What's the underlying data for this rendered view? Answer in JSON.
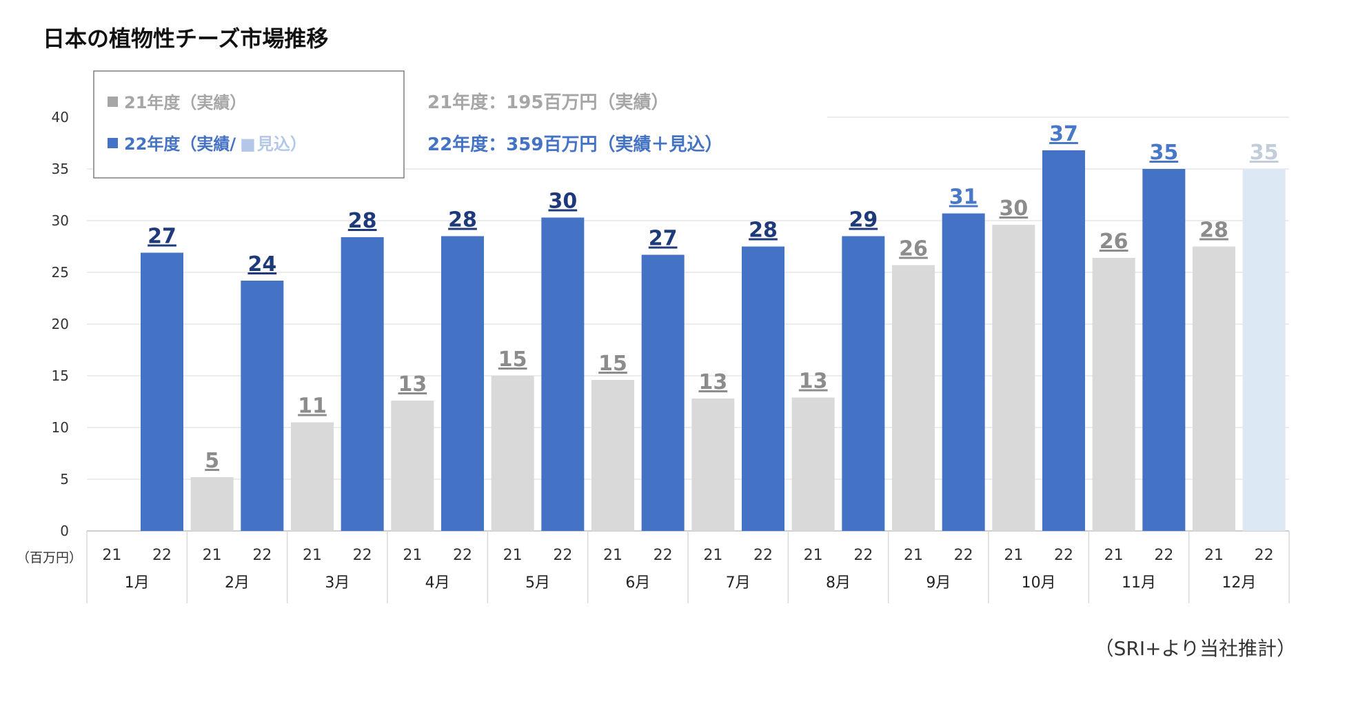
{
  "title": "日本の植物性チーズ市場推移",
  "unit_label": "（百万円）",
  "source_note": "（SRI+より当社推計）",
  "legend": {
    "fy21": "21年度（実績）",
    "fy22_actual": "22年度（実績/",
    "fy22_forecast": "見込）"
  },
  "totals": {
    "fy21": "21年度：195百万円（実績）",
    "fy22": "22年度：359百万円（実績＋見込）"
  },
  "colors": {
    "fy21_bar": "#d9d9d9",
    "fy21_label": "#8c8c8c",
    "fy22_bar": "#4472c4",
    "fy22_label": "#1f3a7a",
    "forecast_bar": "#dde8f5",
    "forecast_label": "#c2cdd9",
    "late_label": "#4a78c9"
  },
  "chart_data": {
    "type": "bar",
    "ylim": [
      0,
      40
    ],
    "yticks": [
      "0",
      "5",
      "10",
      "15",
      "20",
      "25",
      "30",
      "35",
      "40"
    ],
    "categories": [
      "1月",
      "2月",
      "3月",
      "4月",
      "5月",
      "6月",
      "7月",
      "8月",
      "9月",
      "10月",
      "11月",
      "12月"
    ],
    "sub_categories": [
      "21",
      "22"
    ],
    "series": [
      {
        "name": "21年度（実績）",
        "values": [
          0,
          5.2,
          10.5,
          12.6,
          15,
          14.6,
          12.8,
          12.9,
          25.7,
          29.6,
          26.4,
          27.5
        ],
        "labels": [
          "",
          "5",
          "11",
          "13",
          "15",
          "15",
          "13",
          "13",
          "26",
          "30",
          "26",
          "28"
        ]
      },
      {
        "name": "22年度（実績/見込）",
        "values": [
          26.9,
          24.2,
          28.4,
          28.5,
          30.3,
          26.7,
          27.5,
          28.5,
          30.7,
          36.8,
          35,
          35
        ],
        "labels": [
          "27",
          "24",
          "28",
          "28",
          "30",
          "27",
          "28",
          "29",
          "31",
          "37",
          "35",
          "35"
        ],
        "forecast_from_index": 11
      }
    ]
  }
}
